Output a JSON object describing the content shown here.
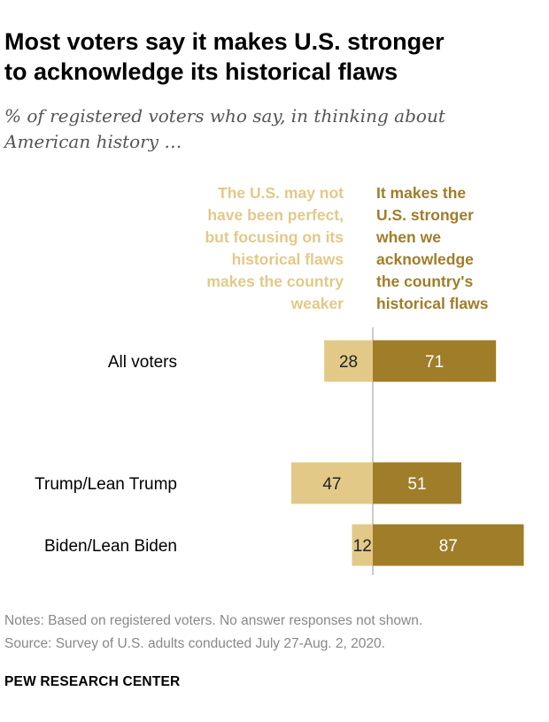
{
  "header": {
    "title_line1": "Most voters say it makes U.S. stronger",
    "title_line2": "to acknowledge its historical flaws",
    "subtitle_line1": "% of registered voters who say, in thinking about",
    "subtitle_line2": "American history …"
  },
  "colors": {
    "weaker": "#E2C988",
    "stronger": "#A07D28",
    "axis": "#BBBBBB"
  },
  "columns": {
    "weaker_lines": [
      "The U.S. may not",
      "have been perfect,",
      "but focusing on its",
      "historical flaws",
      "makes the country",
      "weaker"
    ],
    "stronger_lines": [
      "It makes the",
      "U.S. stronger",
      "when we",
      "acknowledge",
      "the country's",
      "historical flaws"
    ]
  },
  "chart_data": {
    "type": "bar",
    "orientation": "horizontal-diverging",
    "categories": [
      "All voters",
      "Trump/Lean Trump",
      "Biden/Lean Biden"
    ],
    "series": [
      {
        "name": "The U.S. may not have been perfect, but focusing on its historical flaws makes the country weaker",
        "values": [
          28,
          47,
          12
        ]
      },
      {
        "name": "It makes the U.S. stronger when we acknowledge the country's historical flaws",
        "values": [
          71,
          51,
          87
        ]
      }
    ],
    "title": "Most voters say it makes U.S. stronger to acknowledge its historical flaws",
    "subtitle": "% of registered voters who say, in thinking about American history …",
    "xlabel": "",
    "ylabel": "",
    "xlim": [
      0,
      100
    ]
  },
  "footer": {
    "notes": "Notes: Based on registered voters. No answer responses not shown.",
    "source": "Source: Survey of U.S. adults conducted July 27-Aug. 2, 2020.",
    "brand": "PEW RESEARCH CENTER"
  }
}
